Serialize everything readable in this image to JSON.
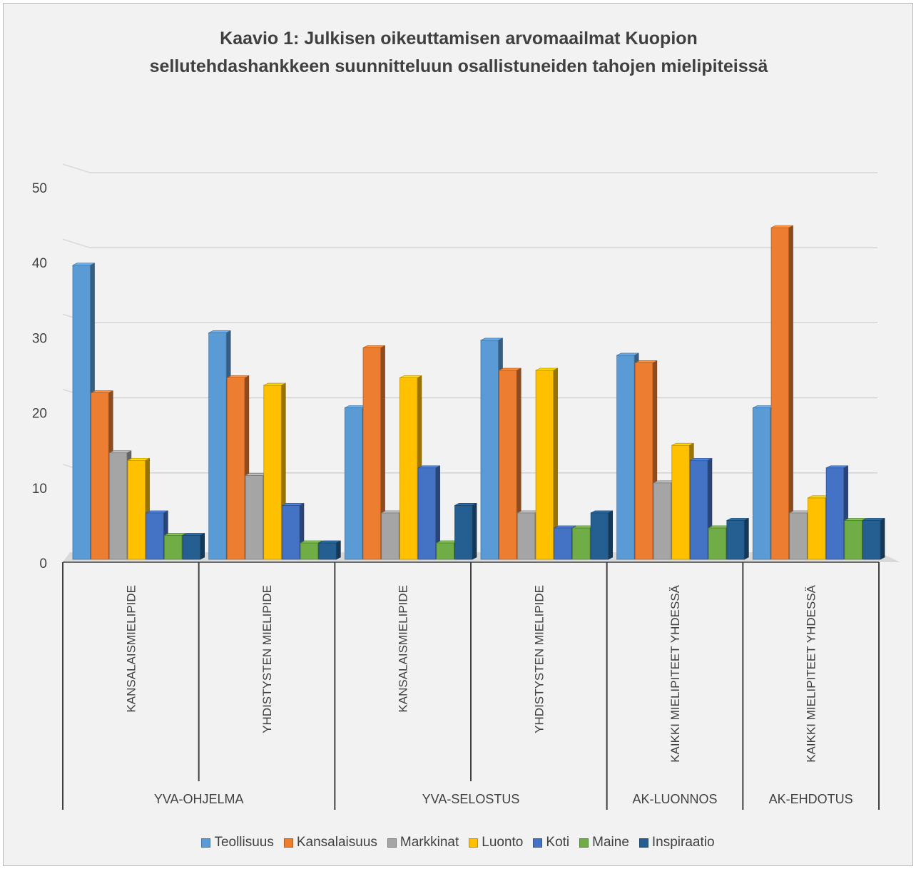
{
  "chart_data": {
    "type": "bar",
    "title_lines": [
      "Kaavio 1: Julkisen oikeuttamisen arvomaailmat Kuopion",
      "sellutehdashankkeen suunnitteluun osallistuneiden tahojen mielipiteissä"
    ],
    "ylim": [
      0,
      50
    ],
    "yticks": [
      "0",
      "10",
      "20",
      "30",
      "40",
      "50"
    ],
    "grid": true,
    "legend_position": "bottom",
    "groups": [
      {
        "label": "YVA-OHJELMA",
        "categories": [
          "KANSALAISMIELIPIDE",
          "YHDISTYSTEN MIELIPIDE"
        ]
      },
      {
        "label": "YVA-SELOSTUS",
        "categories": [
          "KANSALAISMIELIPIDE",
          "YHDISTYSTEN MIELIPIDE"
        ]
      },
      {
        "label": "AK-LUONNOS",
        "categories": [
          "KAIKKI MIELIPITEET YHDESSÄ"
        ]
      },
      {
        "label": "AK-EHDOTUS",
        "categories": [
          "KAIKKI MIELIPITEET YHDESSÄ"
        ]
      }
    ],
    "series": [
      {
        "name": "Teollisuus",
        "color": "#5b9bd5",
        "values": [
          39,
          30,
          20,
          29,
          27,
          20
        ]
      },
      {
        "name": "Kansalaisuus",
        "color": "#ed7d31",
        "values": [
          22,
          24,
          28,
          25,
          26,
          44
        ]
      },
      {
        "name": "Markkinat",
        "color": "#a5a5a5",
        "values": [
          14,
          11,
          6,
          6,
          10,
          6
        ]
      },
      {
        "name": "Luonto",
        "color": "#ffc000",
        "values": [
          13,
          23,
          24,
          25,
          15,
          8
        ]
      },
      {
        "name": "Koti",
        "color": "#4472c4",
        "values": [
          6,
          7,
          12,
          4,
          13,
          12
        ]
      },
      {
        "name": "Maine",
        "color": "#70ad47",
        "values": [
          3,
          2,
          2,
          4,
          4,
          5
        ]
      },
      {
        "name": "Inspiraatio",
        "color": "#255e91",
        "values": [
          3,
          2,
          7,
          6,
          5,
          5
        ]
      }
    ]
  }
}
